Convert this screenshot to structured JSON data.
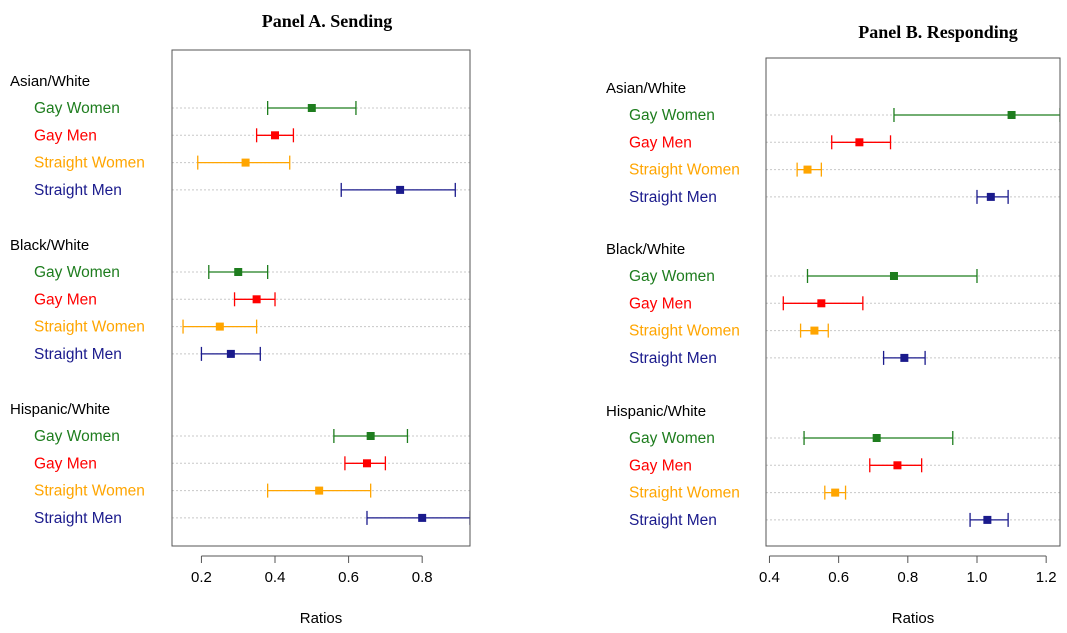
{
  "chart_data": [
    {
      "type": "forest",
      "title": "Panel A. Sending",
      "xlabel": "Ratios",
      "xlim": [
        0.12,
        0.93
      ],
      "xticks": [
        "0.2",
        "0.4",
        "0.6",
        "0.8"
      ],
      "colors": {
        "Gay Women": "#1e7d1e",
        "Gay Men": "#ff0000",
        "Straight Women": "#ffa500",
        "Straight Men": "#1a1a8c"
      },
      "groups": [
        {
          "name": "Asian/White",
          "rows": [
            {
              "label": "Gay Women",
              "estimate": 0.5,
              "low": 0.38,
              "high": 0.62
            },
            {
              "label": "Gay Men",
              "estimate": 0.4,
              "low": 0.35,
              "high": 0.45
            },
            {
              "label": "Straight Women",
              "estimate": 0.32,
              "low": 0.19,
              "high": 0.44
            },
            {
              "label": "Straight Men",
              "estimate": 0.74,
              "low": 0.58,
              "high": 0.89
            }
          ]
        },
        {
          "name": "Black/White",
          "rows": [
            {
              "label": "Gay Women",
              "estimate": 0.3,
              "low": 0.22,
              "high": 0.38
            },
            {
              "label": "Gay Men",
              "estimate": 0.35,
              "low": 0.29,
              "high": 0.4
            },
            {
              "label": "Straight Women",
              "estimate": 0.25,
              "low": 0.15,
              "high": 0.35
            },
            {
              "label": "Straight Men",
              "estimate": 0.28,
              "low": 0.2,
              "high": 0.36
            }
          ]
        },
        {
          "name": "Hispanic/White",
          "rows": [
            {
              "label": "Gay Women",
              "estimate": 0.66,
              "low": 0.56,
              "high": 0.76
            },
            {
              "label": "Gay Men",
              "estimate": 0.65,
              "low": 0.59,
              "high": 0.7
            },
            {
              "label": "Straight Women",
              "estimate": 0.52,
              "low": 0.38,
              "high": 0.66
            },
            {
              "label": "Straight Men",
              "estimate": 0.8,
              "low": 0.65,
              "high": 0.93
            }
          ]
        }
      ]
    },
    {
      "type": "forest",
      "title": "Panel B. Responding",
      "xlabel": "Ratios",
      "xlim": [
        0.39,
        1.24
      ],
      "xticks": [
        "0.4",
        "0.6",
        "0.8",
        "1.0",
        "1.2"
      ],
      "colors": {
        "Gay Women": "#1e7d1e",
        "Gay Men": "#ff0000",
        "Straight Women": "#ffa500",
        "Straight Men": "#1a1a8c"
      },
      "groups": [
        {
          "name": "Asian/White",
          "rows": [
            {
              "label": "Gay Women",
              "estimate": 1.1,
              "low": 0.76,
              "high": 1.24
            },
            {
              "label": "Gay Men",
              "estimate": 0.66,
              "low": 0.58,
              "high": 0.75
            },
            {
              "label": "Straight Women",
              "estimate": 0.51,
              "low": 0.48,
              "high": 0.55
            },
            {
              "label": "Straight Men",
              "estimate": 1.04,
              "low": 1.0,
              "high": 1.09
            }
          ]
        },
        {
          "name": "Black/White",
          "rows": [
            {
              "label": "Gay Women",
              "estimate": 0.76,
              "low": 0.51,
              "high": 1.0
            },
            {
              "label": "Gay Men",
              "estimate": 0.55,
              "low": 0.44,
              "high": 0.67
            },
            {
              "label": "Straight Women",
              "estimate": 0.53,
              "low": 0.49,
              "high": 0.57
            },
            {
              "label": "Straight Men",
              "estimate": 0.79,
              "low": 0.73,
              "high": 0.85
            }
          ]
        },
        {
          "name": "Hispanic/White",
          "rows": [
            {
              "label": "Gay Women",
              "estimate": 0.71,
              "low": 0.5,
              "high": 0.93
            },
            {
              "label": "Gay Men",
              "estimate": 0.77,
              "low": 0.69,
              "high": 0.84
            },
            {
              "label": "Straight Women",
              "estimate": 0.59,
              "low": 0.56,
              "high": 0.62
            },
            {
              "label": "Straight Men",
              "estimate": 1.03,
              "low": 0.98,
              "high": 1.09
            }
          ]
        }
      ]
    }
  ]
}
